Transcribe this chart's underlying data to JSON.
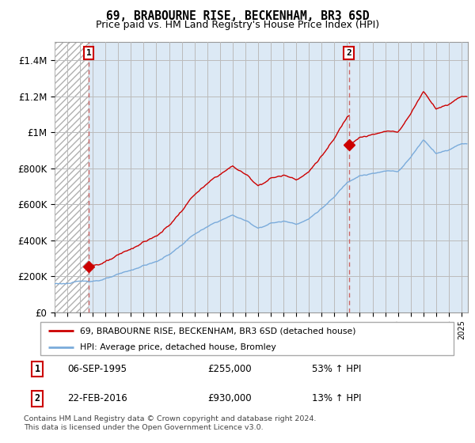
{
  "title": "69, BRABOURNE RISE, BECKENHAM, BR3 6SD",
  "subtitle": "Price paid vs. HM Land Registry's House Price Index (HPI)",
  "legend_line1": "69, BRABOURNE RISE, BECKENHAM, BR3 6SD (detached house)",
  "legend_line2": "HPI: Average price, detached house, Bromley",
  "annotation1_date": "06-SEP-1995",
  "annotation1_price": "£255,000",
  "annotation1_hpi": "53% ↑ HPI",
  "annotation2_date": "22-FEB-2016",
  "annotation2_price": "£930,000",
  "annotation2_hpi": "13% ↑ HPI",
  "footnote": "Contains HM Land Registry data © Crown copyright and database right 2024.\nThis data is licensed under the Open Government Licence v3.0.",
  "sale1_x": 1995.67,
  "sale1_y": 255000,
  "sale2_x": 2016.13,
  "sale2_y": 930000,
  "ylim": [
    0,
    1500000
  ],
  "xlim_start": 1993.0,
  "xlim_end": 2025.5,
  "line_color_property": "#cc0000",
  "line_color_hpi": "#7aabdb",
  "background_color": "#dce9f5",
  "hatch_color": "#c0c0c0",
  "grid_color": "#bbbbbb",
  "dashed_line_color": "#cc6666"
}
